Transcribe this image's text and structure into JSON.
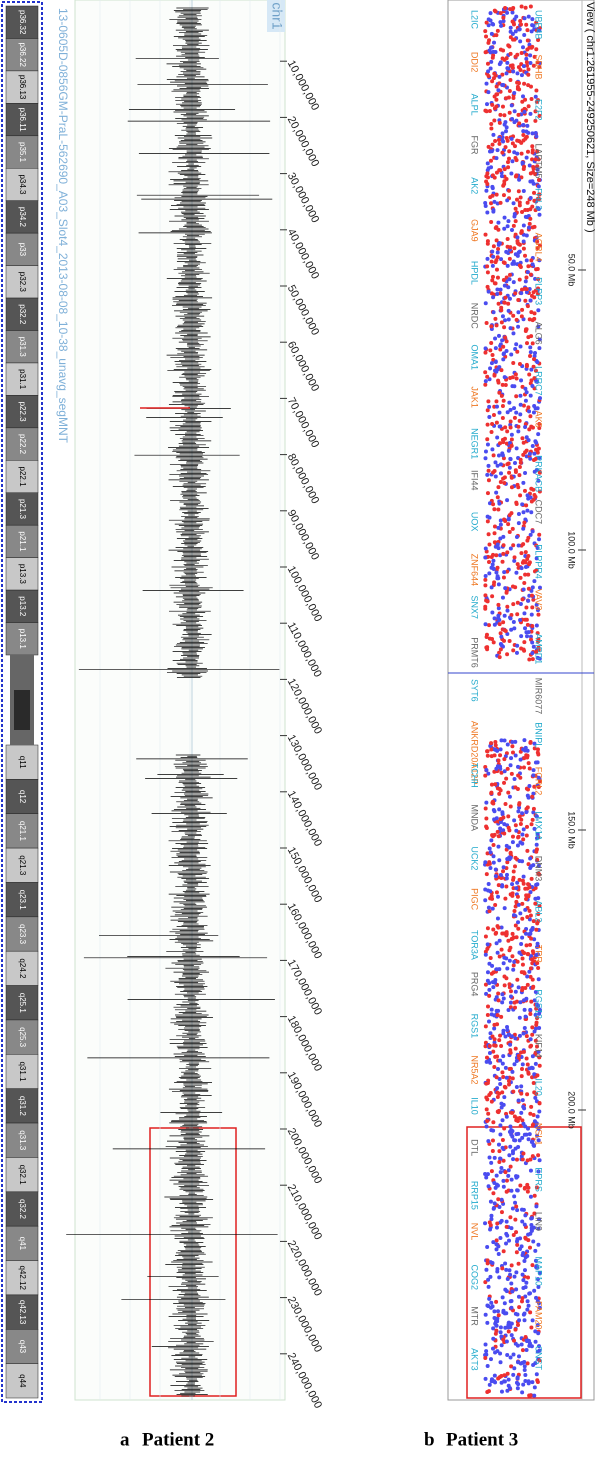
{
  "panel_a": {
    "label": "a",
    "title": "Patient 2",
    "chromosome": "chr1",
    "sample": "13-0605D-0856GM-PraL-562690_A03_Slot4_2013-08-08_10-38_unavg_segMNT",
    "bands": [
      "p36.32",
      "p36.22",
      "p36.13",
      "p36.11",
      "p35.1",
      "p34.3",
      "p34.2",
      "p33",
      "p32.3",
      "p32.2",
      "p31.3",
      "p31.1",
      "p22.3",
      "p22.2",
      "p22.1",
      "p21.3",
      "p21.1",
      "p13.3",
      "p13.2",
      "p13.1",
      "q11",
      "q12",
      "q21.1",
      "q21.3",
      "q23.1",
      "q23.3",
      "q24.2",
      "q25.1",
      "q25.3",
      "q31.1",
      "q31.2",
      "q31.3",
      "q32.1",
      "q32.2",
      "q41",
      "q42.12",
      "q42.13",
      "q43",
      "q44"
    ],
    "position_ticks": [
      {
        "value": 10000000,
        "label": "10,000,000"
      },
      {
        "value": 20000000,
        "label": "20,000,000"
      },
      {
        "value": 30000000,
        "label": "30,000,000"
      },
      {
        "value": 40000000,
        "label": "40,000,000"
      },
      {
        "value": 50000000,
        "label": "50,000,000"
      },
      {
        "value": 60000000,
        "label": "60,000,000"
      },
      {
        "value": 70000000,
        "label": "70,000,000"
      },
      {
        "value": 80000000,
        "label": "80,000,000"
      },
      {
        "value": 90000000,
        "label": "90,000,000"
      },
      {
        "value": 100000000,
        "label": "100,000,000"
      },
      {
        "value": 110000000,
        "label": "110,000,000"
      },
      {
        "value": 120000000,
        "label": "120,000,000"
      },
      {
        "value": 130000000,
        "label": "130,000,000"
      },
      {
        "value": 140000000,
        "label": "140,000,000"
      },
      {
        "value": 150000000,
        "label": "150,000,000"
      },
      {
        "value": 160000000,
        "label": "160,000,000"
      },
      {
        "value": 170000000,
        "label": "170,000,000"
      },
      {
        "value": 180000000,
        "label": "180,000,000"
      },
      {
        "value": 190000000,
        "label": "190,000,000"
      },
      {
        "value": 200000000,
        "label": "200,000,000"
      },
      {
        "value": 210000000,
        "label": "210,000,000"
      },
      {
        "value": 220000000,
        "label": "220,000,000"
      },
      {
        "value": 230000000,
        "label": "230,000,000"
      },
      {
        "value": 240000000,
        "label": "240,000,000"
      }
    ]
  },
  "panel_b": {
    "label": "b",
    "title": "Patient 3",
    "header": "View ( chr1:261955-249250621, Size=248 Mb )",
    "position_ticks": [
      {
        "value": 50,
        "label": "50.0 Mb"
      },
      {
        "value": 100,
        "label": "100.0 Mb"
      },
      {
        "value": 150,
        "label": "150.0 Mb"
      },
      {
        "value": 200,
        "label": "200.0 Mb"
      }
    ],
    "genes_row1": [
      "UBE4B",
      "SDHB",
      "E2F2",
      "LAPTM5",
      "FHL3",
      "AGBL4",
      "PLPP3",
      "ALG6",
      "LRRC7",
      "AK5",
      "PRKACB",
      "CDC7",
      "PLPPR4",
      "VAV3",
      "AMPD1",
      "MIR6077",
      "BNIPL",
      "FCRL2",
      "LMX1A",
      "DNM3",
      "ABL2",
      "TPR",
      "RGS13",
      "KIF14",
      "IL20",
      "NSL1",
      "EPRS",
      "LIN9",
      "MAP10",
      "FAM20",
      "CNST"
    ],
    "genes_row2": [
      "L2IC",
      "DDI2",
      "ALPL",
      "FGR",
      "AK2",
      "GJA9",
      "HPDL",
      "NRDC",
      "OMA1",
      "JAK1",
      "NEGR1",
      "IFI44",
      "UOX",
      "ZNF644",
      "SNX7",
      "PRMT6",
      "SYT6",
      "ANKRD20A12P",
      "TCHH",
      "MNDA",
      "UCK2",
      "PIGC",
      "TOR3A",
      "PRG4",
      "RGS1",
      "NR5A2",
      "IL10",
      "DTL",
      "RRP15",
      "NVL",
      "COG2",
      "MTR",
      "AKT3"
    ]
  }
}
